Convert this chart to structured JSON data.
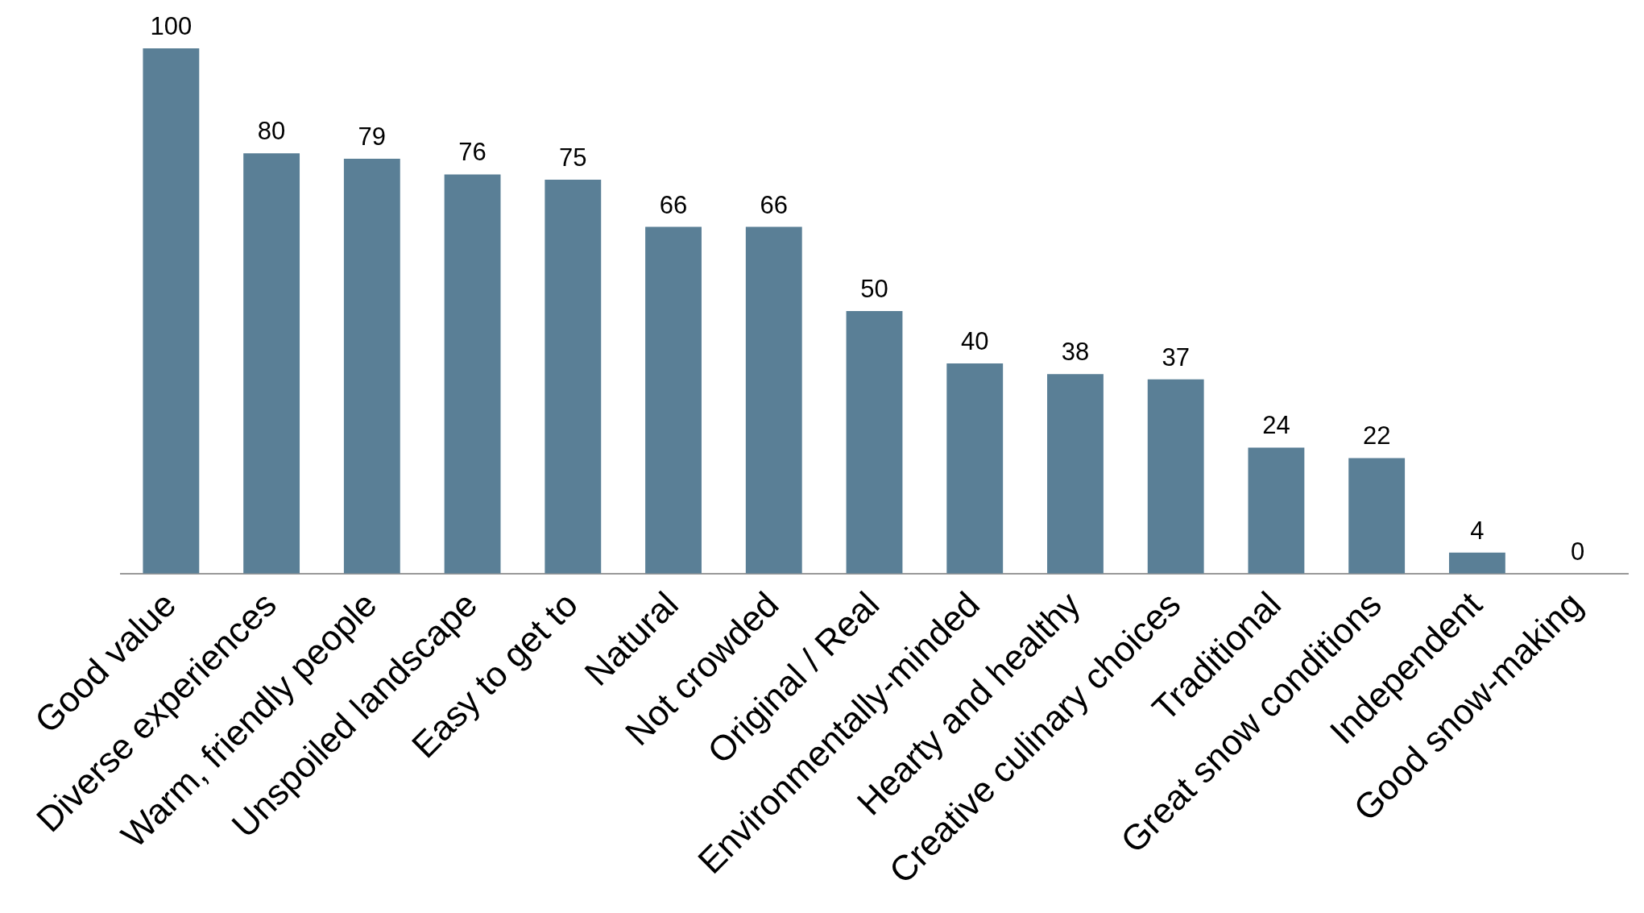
{
  "chart_data": {
    "type": "bar",
    "categories": [
      "Good value",
      "Diverse experiences",
      "Warm, friendly people",
      "Unspoiled landscape",
      "Easy to get to",
      "Natural",
      "Not crowded",
      "Original / Real",
      "Environmentally-minded",
      "Hearty and healthy",
      "Creative culinary choices",
      "Traditional",
      "Great snow conditions",
      "Independent",
      "Good snow-making"
    ],
    "values": [
      100,
      80,
      79,
      76,
      75,
      66,
      66,
      50,
      40,
      38,
      37,
      24,
      22,
      4,
      0
    ],
    "color": "#5a7f96",
    "data_labels": true,
    "grid": false,
    "legend": false
  }
}
